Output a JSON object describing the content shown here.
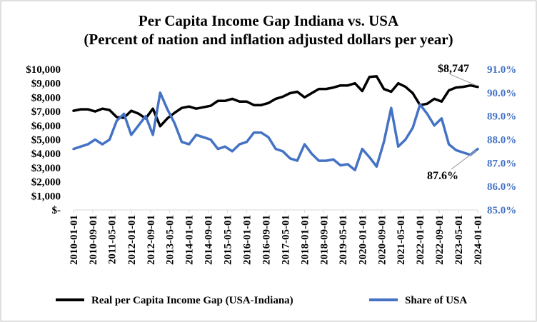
{
  "chart_data": {
    "type": "line",
    "title": "Per Capita Income Gap Indiana vs. USA",
    "subtitle": "(Percent of nation and inflation  adjusted dollars per year)",
    "x_tick_labels": [
      "2010-01-01",
      "2010-09-01",
      "2011-05-01",
      "2012-01-01",
      "2012-09-01",
      "2013-05-01",
      "2014-01-01",
      "2014-09-01",
      "2015-05-01",
      "2016-01-01",
      "2016-09-01",
      "2017-05-01",
      "2018-01-01",
      "2018-09-01",
      "2019-05-01",
      "2020-01-01",
      "2020-09-01",
      "2021-05-01",
      "2022-01-01",
      "2022-09-01",
      "2023-05-01",
      "2024-01-01"
    ],
    "y_left": {
      "ylim": [
        0,
        10000
      ],
      "tick_values": [
        0,
        1000,
        2000,
        3000,
        4000,
        5000,
        6000,
        7000,
        8000,
        9000,
        10000
      ],
      "tick_labels": [
        "$-",
        "$1,000",
        "$2,000",
        "$3,000",
        "$4,000",
        "$5,000",
        "$6,000",
        "$7,000",
        "$8,000",
        "$9,000",
        "$10,000"
      ]
    },
    "y_right": {
      "ylim": [
        85.0,
        91.0
      ],
      "tick_values": [
        85,
        86,
        87,
        88,
        89,
        90,
        91
      ],
      "tick_labels": [
        "85.0%",
        "86.0%",
        "87.0%",
        "88.0%",
        "89.0%",
        "90.0%",
        "91.0%"
      ]
    },
    "grid": false,
    "legend": "bottom",
    "colors": {
      "gap": "#000000",
      "share": "#4472C4",
      "right_axis": "#4472C4",
      "callout": "#A6A6A6"
    },
    "series": [
      {
        "name": "Real per Capita Income Gap (USA-Indiana)",
        "axis": "left",
        "x": [
          "2010-01-01",
          "2010-04-01",
          "2010-07-01",
          "2010-10-01",
          "2011-01-01",
          "2011-04-01",
          "2011-07-01",
          "2011-10-01",
          "2012-01-01",
          "2012-04-01",
          "2012-07-01",
          "2012-10-01",
          "2013-01-01",
          "2013-04-01",
          "2013-07-01",
          "2013-10-01",
          "2014-01-01",
          "2014-04-01",
          "2014-07-01",
          "2014-10-01",
          "2015-01-01",
          "2015-04-01",
          "2015-07-01",
          "2015-10-01",
          "2016-01-01",
          "2016-04-01",
          "2016-07-01",
          "2016-10-01",
          "2017-01-01",
          "2017-04-01",
          "2017-07-01",
          "2017-10-01",
          "2018-01-01",
          "2018-04-01",
          "2018-07-01",
          "2018-10-01",
          "2019-01-01",
          "2019-04-01",
          "2019-07-01",
          "2019-10-01",
          "2020-01-01",
          "2020-04-01",
          "2020-07-01",
          "2020-10-01",
          "2021-01-01",
          "2021-04-01",
          "2021-07-01",
          "2021-10-01",
          "2022-01-01",
          "2022-04-01",
          "2022-07-01",
          "2022-10-01",
          "2023-01-01",
          "2023-04-01",
          "2023-07-01",
          "2023-10-01",
          "2024-01-01"
        ],
        "values": [
          7050,
          7150,
          7150,
          7000,
          7200,
          7100,
          6600,
          6550,
          7050,
          6850,
          6500,
          7200,
          5950,
          6500,
          6900,
          7250,
          7350,
          7200,
          7300,
          7400,
          7750,
          7750,
          7900,
          7700,
          7700,
          7450,
          7450,
          7600,
          7900,
          8050,
          8300,
          8400,
          8000,
          8300,
          8600,
          8600,
          8700,
          8850,
          8850,
          9000,
          8450,
          9450,
          9500,
          8600,
          8400,
          9000,
          8750,
          8300,
          7450,
          7550,
          7900,
          7700,
          8500,
          8700,
          8750,
          8850,
          8747
        ]
      },
      {
        "name": "Share of USA",
        "axis": "right",
        "x": [
          "2010-01-01",
          "2010-04-01",
          "2010-07-01",
          "2010-10-01",
          "2011-01-01",
          "2011-04-01",
          "2011-07-01",
          "2011-10-01",
          "2012-01-01",
          "2012-04-01",
          "2012-07-01",
          "2012-10-01",
          "2013-01-01",
          "2013-04-01",
          "2013-07-01",
          "2013-10-01",
          "2014-01-01",
          "2014-04-01",
          "2014-07-01",
          "2014-10-01",
          "2015-01-01",
          "2015-04-01",
          "2015-07-01",
          "2015-10-01",
          "2016-01-01",
          "2016-04-01",
          "2016-07-01",
          "2016-10-01",
          "2017-01-01",
          "2017-04-01",
          "2017-07-01",
          "2017-10-01",
          "2018-01-01",
          "2018-04-01",
          "2018-07-01",
          "2018-10-01",
          "2019-01-01",
          "2019-04-01",
          "2019-07-01",
          "2019-10-01",
          "2020-01-01",
          "2020-04-01",
          "2020-07-01",
          "2020-10-01",
          "2021-01-01",
          "2021-04-01",
          "2021-07-01",
          "2021-10-01",
          "2022-01-01",
          "2022-04-01",
          "2022-07-01",
          "2022-10-01",
          "2023-01-01",
          "2023-04-01",
          "2023-07-01",
          "2023-10-01",
          "2024-01-01"
        ],
        "values": [
          87.6,
          87.7,
          87.8,
          88.0,
          87.8,
          88.0,
          88.8,
          89.1,
          88.2,
          88.6,
          89.0,
          88.2,
          90.0,
          89.3,
          88.7,
          87.9,
          87.8,
          88.2,
          88.1,
          88.0,
          87.6,
          87.7,
          87.5,
          87.8,
          87.9,
          88.3,
          88.3,
          88.1,
          87.6,
          87.5,
          87.2,
          87.1,
          87.8,
          87.4,
          87.1,
          87.1,
          87.15,
          86.9,
          86.95,
          86.7,
          87.6,
          87.25,
          86.85,
          87.9,
          89.35,
          87.7,
          88.0,
          88.5,
          89.5,
          89.1,
          88.6,
          88.9,
          87.8,
          87.55,
          87.45,
          87.35,
          87.6
        ]
      }
    ],
    "annotations": [
      {
        "text": "$8,747",
        "series": "Real per Capita Income Gap (USA-Indiana)",
        "x": "2024-01-01",
        "value": 8747
      },
      {
        "text": "87.6%",
        "series": "Share of USA",
        "x": "2024-01-01",
        "value": 87.6
      }
    ]
  }
}
